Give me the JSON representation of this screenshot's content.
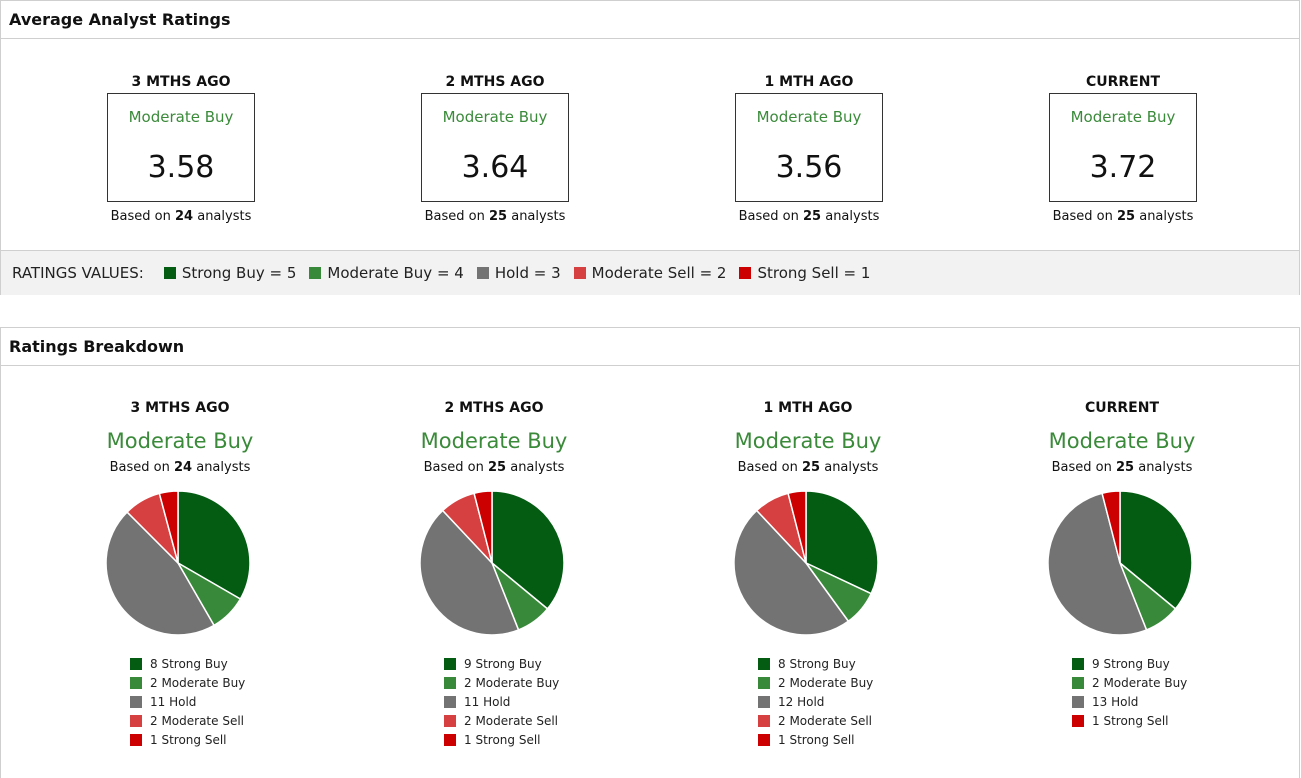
{
  "colors": {
    "strong_buy": "#035c12",
    "moderate_buy": "#388a3a",
    "hold": "#737373",
    "moderate_sell": "#d64040",
    "strong_sell": "#cc0000",
    "rating_text": "#3a8a3a"
  },
  "average_section": {
    "title": "Average Analyst Ratings",
    "periods": [
      {
        "label": "3 MTHS AGO",
        "rating": "Moderate Buy",
        "score": "3.58",
        "based_prefix": "Based on ",
        "count": "24",
        "based_suffix": " analysts"
      },
      {
        "label": "2 MTHS AGO",
        "rating": "Moderate Buy",
        "score": "3.64",
        "based_prefix": "Based on ",
        "count": "25",
        "based_suffix": " analysts"
      },
      {
        "label": "1 MTH AGO",
        "rating": "Moderate Buy",
        "score": "3.56",
        "based_prefix": "Based on ",
        "count": "25",
        "based_suffix": " analysts"
      },
      {
        "label": "CURRENT",
        "rating": "Moderate Buy",
        "score": "3.72",
        "based_prefix": "Based on ",
        "count": "25",
        "based_suffix": " analysts"
      }
    ],
    "ratings_values": {
      "title": "RATINGS VALUES:",
      "items": [
        "Strong Buy = 5",
        "Moderate Buy = 4",
        "Hold = 3",
        "Moderate Sell = 2",
        "Strong Sell = 1"
      ]
    }
  },
  "breakdown_section": {
    "title": "Ratings Breakdown",
    "periods": [
      {
        "label": "3 MTHS AGO",
        "rating": "Moderate Buy",
        "based_prefix": "Based on ",
        "count": "24",
        "based_suffix": " analysts",
        "legend": [
          "8 Strong Buy",
          "2 Moderate Buy",
          "11 Hold",
          "2 Moderate Sell",
          "1 Strong Sell"
        ]
      },
      {
        "label": "2 MTHS AGO",
        "rating": "Moderate Buy",
        "based_prefix": "Based on ",
        "count": "25",
        "based_suffix": " analysts",
        "legend": [
          "9 Strong Buy",
          "2 Moderate Buy",
          "11 Hold",
          "2 Moderate Sell",
          "1 Strong Sell"
        ]
      },
      {
        "label": "1 MTH AGO",
        "rating": "Moderate Buy",
        "based_prefix": "Based on ",
        "count": "25",
        "based_suffix": " analysts",
        "legend": [
          "8 Strong Buy",
          "2 Moderate Buy",
          "12 Hold",
          "2 Moderate Sell",
          "1 Strong Sell"
        ]
      },
      {
        "label": "CURRENT",
        "rating": "Moderate Buy",
        "based_prefix": "Based on ",
        "count": "25",
        "based_suffix": " analysts",
        "legend": [
          "9 Strong Buy",
          "2 Moderate Buy",
          "13 Hold",
          "1 Strong Sell"
        ]
      }
    ]
  },
  "chart_data": [
    {
      "type": "pie",
      "title": "",
      "categories": [
        "Strong Buy",
        "Moderate Buy",
        "Hold",
        "Moderate Sell",
        "Strong Sell"
      ],
      "values": [
        8,
        2,
        11,
        2,
        1
      ]
    },
    {
      "type": "pie",
      "title": "",
      "categories": [
        "Strong Buy",
        "Moderate Buy",
        "Hold",
        "Moderate Sell",
        "Strong Sell"
      ],
      "values": [
        9,
        2,
        11,
        2,
        1
      ]
    },
    {
      "type": "pie",
      "title": "",
      "categories": [
        "Strong Buy",
        "Moderate Buy",
        "Hold",
        "Moderate Sell",
        "Strong Sell"
      ],
      "values": [
        8,
        2,
        12,
        2,
        1
      ]
    },
    {
      "type": "pie",
      "title": "",
      "categories": [
        "Strong Buy",
        "Moderate Buy",
        "Hold",
        "Strong Sell"
      ],
      "values": [
        9,
        2,
        13,
        1
      ]
    }
  ]
}
